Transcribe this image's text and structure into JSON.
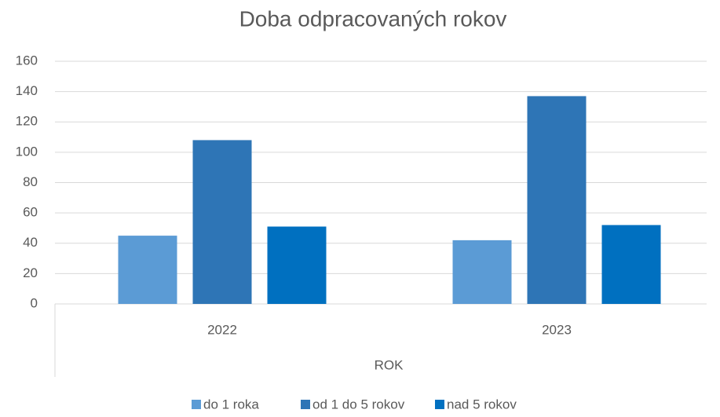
{
  "chart_data": {
    "type": "bar",
    "title": "Doba odpracovaných rokov",
    "x_label": "ROK",
    "categories": [
      "2022",
      "2023"
    ],
    "series": [
      {
        "name": "do 1 roka",
        "color": "#5b9bd5",
        "values": [
          45,
          42
        ]
      },
      {
        "name": "od 1 do 5 rokov",
        "color": "#2e75b6",
        "values": [
          108,
          137
        ]
      },
      {
        "name": "nad 5 rokov",
        "color": "#0070c0",
        "values": [
          51,
          52
        ]
      }
    ],
    "ylim": [
      0,
      160
    ],
    "yticks": [
      0,
      20,
      40,
      60,
      80,
      100,
      120,
      140,
      160
    ],
    "grid": true,
    "legend": "bottom"
  }
}
